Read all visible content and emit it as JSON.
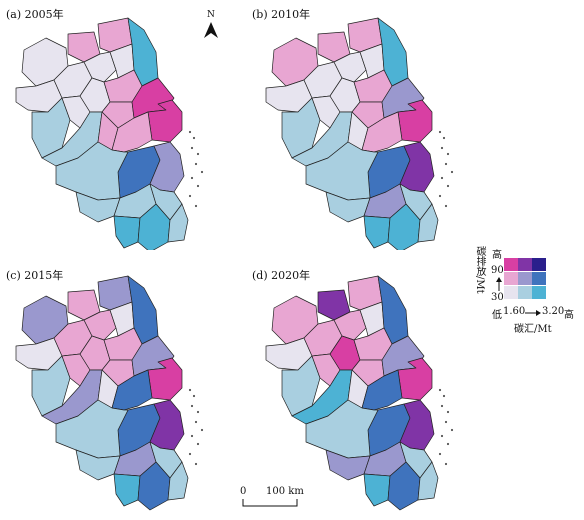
{
  "panels": [
    {
      "label": "(a) 2005年"
    },
    {
      "label": "(b) 2010年"
    },
    {
      "label": "(c) 2015年"
    },
    {
      "label": "(d) 2020年"
    }
  ],
  "north_arrow": {
    "label": "N"
  },
  "scale_bar": {
    "zero": "0",
    "distance": "100 km"
  },
  "legend": {
    "y_axis_title": "碳排放/Mt",
    "y_high_label": "高",
    "y_high_value": "90",
    "y_low_value": "30",
    "x_low_label": "低",
    "x_low_value": "1.60",
    "x_high_value": "3.20",
    "x_high_label": "高",
    "x_axis_title": "碳汇/Mt",
    "color_matrix": [
      [
        "#e7e4ef",
        "#a9cfe0",
        "#4db2d4"
      ],
      [
        "#e8a6d2",
        "#9a98ce",
        "#3f73bd"
      ],
      [
        "#d83fa3",
        "#8034a6",
        "#2a1f8c"
      ]
    ]
  },
  "class_colors": {
    "LL": "#e7e4ef",
    "ML": "#a9cfe0",
    "HL": "#4db2d4",
    "LM": "#e8a6d2",
    "MM": "#9a98ce",
    "HM": "#3f73bd",
    "LH": "#d83fa3",
    "MH": "#8034a6",
    "HH": "#2a1f8c"
  }
}
